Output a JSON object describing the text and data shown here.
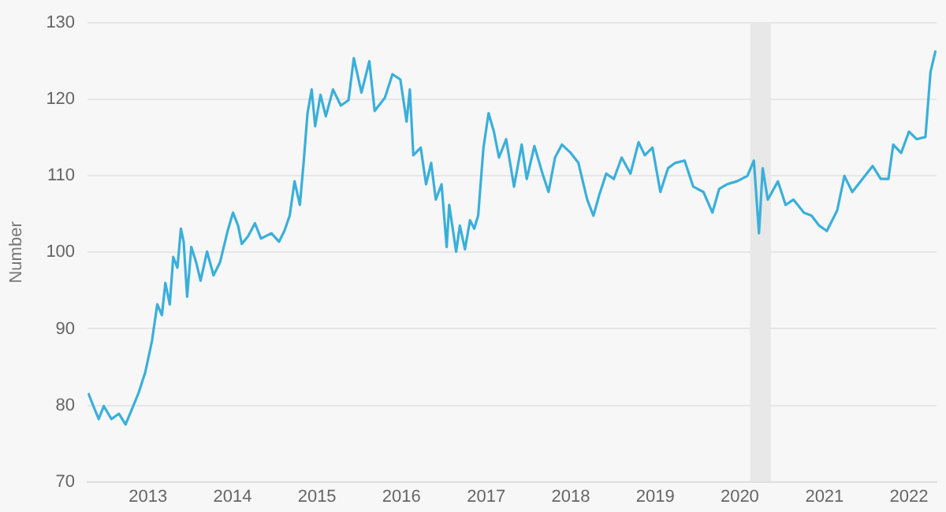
{
  "chart_data": {
    "type": "line",
    "ylabel": "Number",
    "color": "#3aafda",
    "x": [
      "2012-04-18",
      "2012-05-10",
      "2012-06-02",
      "2012-06-24",
      "2012-07-27",
      "2012-08-28",
      "2012-09-26",
      "2012-10-25",
      "2012-11-21",
      "2012-12-20",
      "2013-01-18",
      "2013-02-10",
      "2013-03-02",
      "2013-03-17",
      "2013-04-05",
      "2013-04-20",
      "2013-05-08",
      "2013-05-23",
      "2013-06-04",
      "2013-06-19",
      "2013-07-07",
      "2013-07-28",
      "2013-08-16",
      "2013-09-13",
      "2013-10-11",
      "2013-11-08",
      "2013-12-11",
      "2014-01-03",
      "2014-01-25",
      "2014-02-10",
      "2014-03-09",
      "2014-04-08",
      "2014-05-04",
      "2014-06-18",
      "2014-07-21",
      "2014-08-13",
      "2014-09-05",
      "2014-09-26",
      "2014-10-19",
      "2014-11-04",
      "2014-11-21",
      "2014-12-09",
      "2014-12-24",
      "2015-01-16",
      "2015-02-08",
      "2015-03-11",
      "2015-04-14",
      "2015-05-17",
      "2015-06-09",
      "2015-07-12",
      "2015-08-15",
      "2015-09-07",
      "2015-10-21",
      "2015-11-23",
      "2015-12-27",
      "2016-01-23",
      "2016-02-06",
      "2016-02-21",
      "2016-03-24",
      "2016-04-16",
      "2016-05-08",
      "2016-05-28",
      "2016-06-22",
      "2016-07-14",
      "2016-07-25",
      "2016-08-24",
      "2016-09-09",
      "2016-10-01",
      "2016-10-23",
      "2016-11-10",
      "2016-11-27",
      "2016-12-20",
      "2017-01-11",
      "2017-02-03",
      "2017-02-25",
      "2017-03-28",
      "2017-05-01",
      "2017-06-03",
      "2017-06-25",
      "2017-07-28",
      "2017-09-01",
      "2017-09-27",
      "2017-10-25",
      "2017-11-24",
      "2018-01-01",
      "2018-02-03",
      "2018-03-13",
      "2018-04-09",
      "2018-05-05",
      "2018-06-03",
      "2018-07-06",
      "2018-08-09",
      "2018-09-16",
      "2018-10-21",
      "2018-11-17",
      "2018-12-20",
      "2019-01-23",
      "2019-02-25",
      "2019-03-28",
      "2019-05-08",
      "2019-06-14",
      "2019-07-28",
      "2019-09-05",
      "2019-10-04",
      "2019-11-06",
      "2019-12-20",
      "2020-02-03",
      "2020-03-02",
      "2020-03-24",
      "2020-04-09",
      "2020-05-01",
      "2020-06-14",
      "2020-07-17",
      "2020-08-20",
      "2020-10-04",
      "2020-11-06",
      "2020-12-09",
      "2021-01-11",
      "2021-02-25",
      "2021-03-28",
      "2021-05-01",
      "2021-06-14",
      "2021-07-28",
      "2021-09-01",
      "2021-10-04",
      "2021-10-25",
      "2021-11-28",
      "2022-01-01",
      "2022-02-03",
      "2022-03-13",
      "2022-04-04",
      "2022-04-26"
    ],
    "values": [
      81.6,
      79.9,
      78.2,
      79.9,
      78.2,
      78.9,
      77.5,
      79.6,
      81.6,
      84.3,
      88.4,
      93.2,
      91.8,
      96,
      93.2,
      99.4,
      98,
      103.1,
      101.4,
      94.2,
      100.7,
      98.7,
      96.3,
      100.1,
      97,
      98.7,
      102.8,
      105.2,
      103.5,
      101.1,
      102.1,
      103.8,
      101.8,
      102.5,
      101.4,
      102.8,
      104.8,
      109.3,
      106.2,
      111.7,
      118.2,
      121.3,
      116.5,
      120.6,
      117.8,
      121.3,
      119.2,
      119.9,
      125.4,
      120.9,
      125,
      118.5,
      120.2,
      123.3,
      122.6,
      117.1,
      121.3,
      112.7,
      113.7,
      108.9,
      111.7,
      106.9,
      108.9,
      100.7,
      106.2,
      100.1,
      103.5,
      100.4,
      104.2,
      103.1,
      104.8,
      113.7,
      118.2,
      115.8,
      112.4,
      114.8,
      108.6,
      114.1,
      109.6,
      113.9,
      110.3,
      107.9,
      112.4,
      114.1,
      113,
      111.7,
      106.9,
      104.8,
      107.6,
      110.3,
      109.6,
      112.4,
      110.3,
      114.4,
      112.7,
      113.7,
      107.9,
      111,
      111.7,
      112,
      108.6,
      107.9,
      105.2,
      108.3,
      108.9,
      109.3,
      110,
      112,
      102.5,
      111,
      106.9,
      109.3,
      106.2,
      106.9,
      105.2,
      104.8,
      103.5,
      102.8,
      105.5,
      110,
      107.9,
      109.6,
      111.3,
      109.6,
      109.6,
      114.1,
      113,
      115.8,
      114.8,
      115.1,
      123.6,
      126.4
    ],
    "xlim": [
      "2012-04-15",
      "2022-04-30"
    ],
    "xticks": [
      "2013",
      "2014",
      "2015",
      "2016",
      "2017",
      "2018",
      "2019",
      "2020",
      "2021",
      "2022"
    ],
    "ylim": [
      70,
      130
    ],
    "yticks": [
      70,
      80,
      90,
      100,
      110,
      120,
      130
    ],
    "grid": "y",
    "marker": "none",
    "line_style": "solid",
    "bands": [
      {
        "axis": "x",
        "from": "2020-02-15",
        "to": "2020-05-15",
        "color": "#e8e8e8"
      }
    ]
  }
}
